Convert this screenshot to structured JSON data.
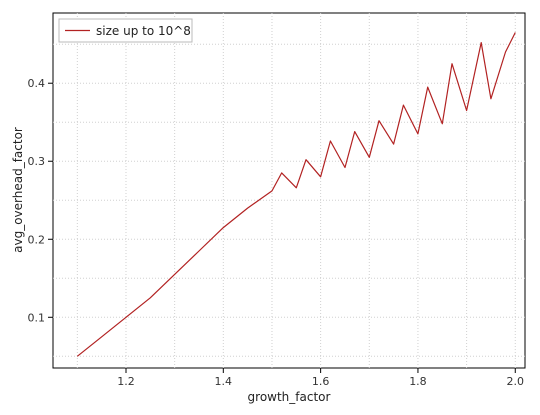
{
  "chart_data": {
    "type": "line",
    "title": "",
    "xlabel": "growth_factor",
    "ylabel": "avg_overhead_factor",
    "xlim": [
      1.05,
      2.02
    ],
    "ylim": [
      0.035,
      0.49
    ],
    "grid": true,
    "legend_position": "top-left",
    "x_ticks": [
      1.2,
      1.4,
      1.6,
      1.8,
      2.0
    ],
    "x_tick_labels": [
      "1.2",
      "1.4",
      "1.6",
      "1.8",
      "2.0"
    ],
    "y_ticks": [
      0.1,
      0.2,
      0.3,
      0.4
    ],
    "y_tick_labels": [
      "0.1",
      "0.2",
      "0.3",
      "0.4"
    ],
    "series": [
      {
        "name": "size up to 10^8",
        "color": "#b22222",
        "x": [
          1.1,
          1.15,
          1.2,
          1.25,
          1.3,
          1.35,
          1.4,
          1.45,
          1.5,
          1.52,
          1.55,
          1.57,
          1.6,
          1.62,
          1.65,
          1.67,
          1.7,
          1.72,
          1.75,
          1.77,
          1.8,
          1.82,
          1.85,
          1.87,
          1.9,
          1.93,
          1.95,
          1.98,
          2.0
        ],
        "y": [
          0.05,
          0.075,
          0.1,
          0.125,
          0.155,
          0.185,
          0.215,
          0.24,
          0.262,
          0.285,
          0.266,
          0.302,
          0.28,
          0.326,
          0.292,
          0.338,
          0.305,
          0.352,
          0.322,
          0.372,
          0.335,
          0.395,
          0.348,
          0.425,
          0.365,
          0.452,
          0.38,
          0.44,
          0.465
        ]
      }
    ]
  }
}
